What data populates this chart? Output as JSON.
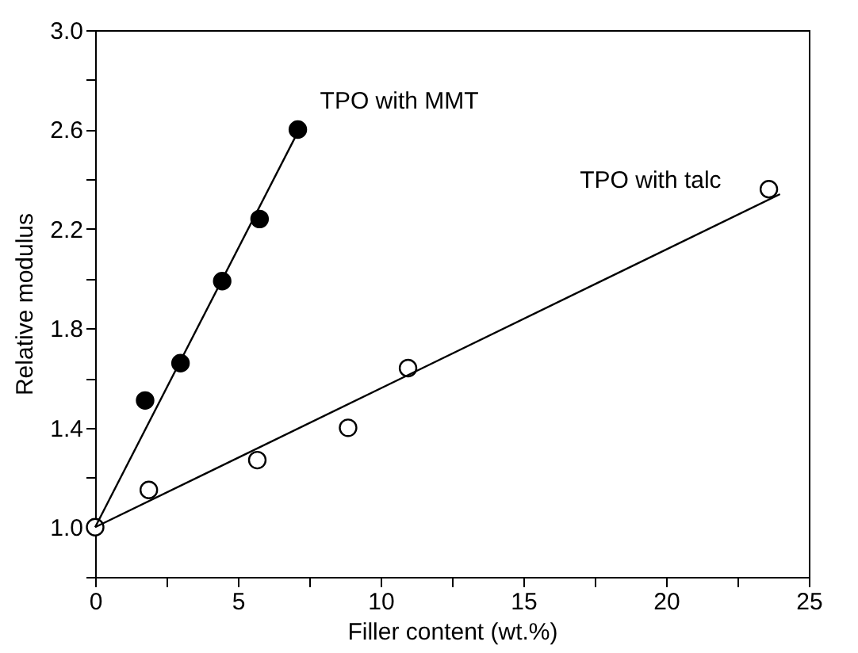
{
  "chart_data": {
    "type": "scatter",
    "xlabel": "Filler content (wt.%)",
    "ylabel": "Relative modulus",
    "xlim": [
      0,
      25
    ],
    "ylim": [
      0.8,
      3.0
    ],
    "xticks": [
      0,
      {
        "value": 2.5,
        "label": null
      },
      5,
      {
        "value": 7.5,
        "label": null
      },
      10,
      {
        "value": 12.5,
        "label": null
      },
      15,
      {
        "value": 17.5,
        "label": null
      },
      20,
      {
        "value": 22.5,
        "label": null
      },
      25
    ],
    "yticks": [
      {
        "value": 0.8,
        "label": null
      },
      {
        "value": 1.0,
        "label": "1.0"
      },
      {
        "value": 1.2,
        "label": null
      },
      {
        "value": 1.4,
        "label": "1.4"
      },
      {
        "value": 1.6,
        "label": null
      },
      {
        "value": 1.8,
        "label": "1.8"
      },
      {
        "value": 2.0,
        "label": null
      },
      {
        "value": 2.2,
        "label": "2.2"
      },
      {
        "value": 2.4,
        "label": null
      },
      {
        "value": 2.6,
        "label": "2.6"
      },
      {
        "value": 2.8,
        "label": null
      },
      {
        "value": 3.0,
        "label": "3.0"
      }
    ],
    "grid": false,
    "legend": false,
    "marker": "circle",
    "series": [
      {
        "name": "TPO with MMT",
        "type": "scatter",
        "color": "#000000",
        "x": [
          1.75,
          2.99,
          4.45,
          5.76,
          7.1
        ],
        "values": [
          1.51,
          1.66,
          1.99,
          2.24,
          2.6
        ]
      },
      {
        "name": "TPO with talc",
        "type": "scatter",
        "color": "#ffffff",
        "x": [
          0,
          1.88,
          5.68,
          8.86,
          10.96,
          23.6
        ],
        "values": [
          1.0,
          1.15,
          1.27,
          1.4,
          1.64,
          2.36
        ]
      },
      {
        "type": "line",
        "color": "#000000",
        "marker": "none",
        "line_style": "solid",
        "x": [
          0,
          7.1
        ],
        "values": [
          1.0,
          2.59
        ]
      },
      {
        "type": "line",
        "color": "#000000",
        "marker": "none",
        "line_style": "solid",
        "x": [
          0,
          23.99
        ],
        "values": [
          1.0,
          2.34
        ]
      }
    ]
  }
}
